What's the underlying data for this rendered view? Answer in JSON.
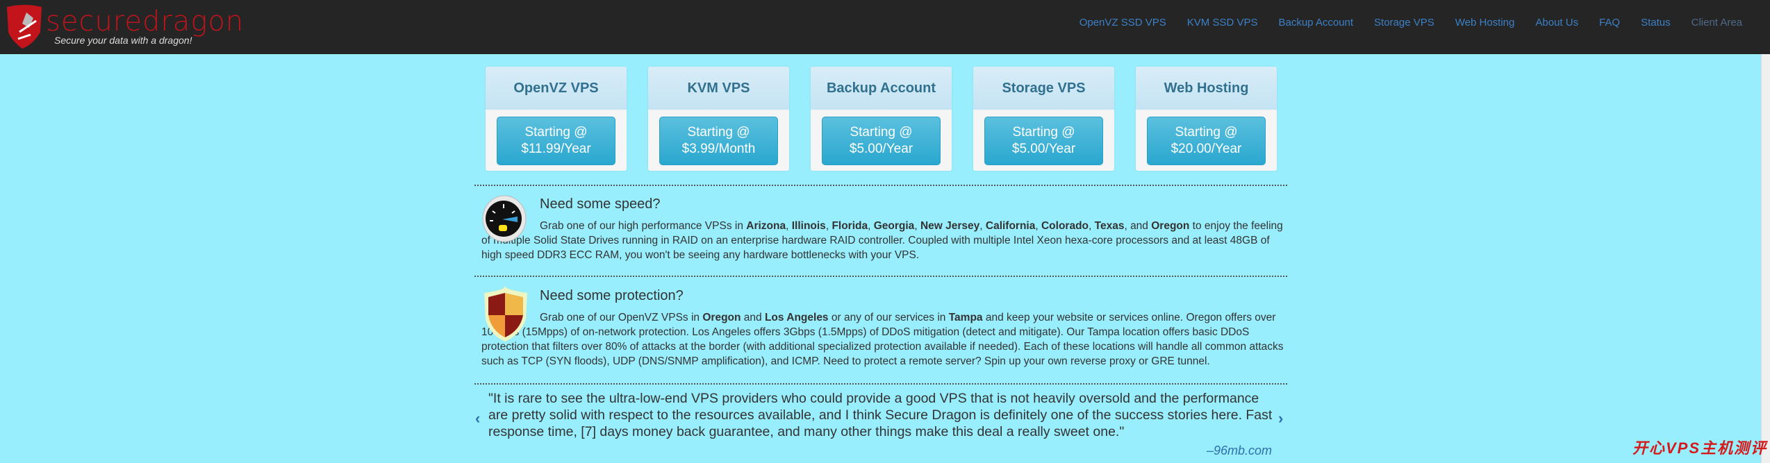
{
  "header": {
    "logo_text": "securedragon",
    "tagline": "Secure your data with a dragon!",
    "nav": [
      "OpenVZ SSD VPS",
      "KVM SSD VPS",
      "Backup Account",
      "Storage VPS",
      "Web Hosting",
      "About Us",
      "FAQ",
      "Status",
      "Client Area"
    ]
  },
  "cards": [
    {
      "title": "OpenVZ VPS",
      "line1": "Starting @",
      "line2": "$11.99/Year"
    },
    {
      "title": "KVM VPS",
      "line1": "Starting @",
      "line2": "$3.99/Month"
    },
    {
      "title": "Backup Account",
      "line1": "Starting @",
      "line2": "$5.00/Year"
    },
    {
      "title": "Storage VPS",
      "line1": "Starting @",
      "line2": "$5.00/Year"
    },
    {
      "title": "Web Hosting",
      "line1": "Starting @",
      "line2": "$20.00/Year"
    }
  ],
  "speed": {
    "icon": "speedometer-icon",
    "title": "Need some speed?",
    "p1": "Grab one of our high performance VPSs in ",
    "locs": [
      "Arizona",
      "Illinois",
      "Florida",
      "Georgia",
      "New Jersey",
      "California",
      "Colorado",
      "Texas",
      "Oregon"
    ],
    "p2": " to enjoy the feeling of multiple Solid State Drives running in RAID on an enterprise hardware RAID controller. Coupled with multiple Intel Xeon hexa-core processors and at least 48GB of high speed DDR3 ECC RAM, you won't be seeing any hardware bottlenecks with your VPS."
  },
  "protection": {
    "icon": "shield-icon",
    "title": "Need some protection?",
    "a": "Grab one of our OpenVZ VPSs in ",
    "b": "Oregon",
    "c": " and ",
    "d": "Los Angeles",
    "e": " or any of our services in ",
    "f": "Tampa",
    "g": " and keep your website or services online. Oregon offers over 10Gbps (15Mpps) of on-network protection. Los Angeles offers 3Gbps (1.5Mpps) of DDoS mitigation (detect and mitigate). Our Tampa location offers basic DDoS protection that filters over 80% of attacks at the border (with additional specialized protection available if needed). Each of these locations will handle all common attacks such as TCP (SYN floods), UDP (DNS/SNMP amplification), and ICMP. Need to protect a remote server? Spin up your own reverse proxy or GRE tunnel."
  },
  "testimonial": {
    "quote": "\"It is rare to see the ultra-low-end VPS providers who could provide a good VPS that is not heavily oversold and the performance are pretty solid with respect to the resources available, and I think Secure Dragon is definitely one of the success stories here. Fast response time, [7] days money back guarantee, and many other things make this deal a really sweet one.\"",
    "source": "–96mb.com",
    "prev": "‹",
    "next": "›"
  },
  "watermark": "开心VPS主机测评",
  "colors": {
    "background": "#98eefc",
    "header": "#252525",
    "nav_link": "#3c80c6",
    "button": "#2aa7cf",
    "logo_red": "#c0141c"
  }
}
